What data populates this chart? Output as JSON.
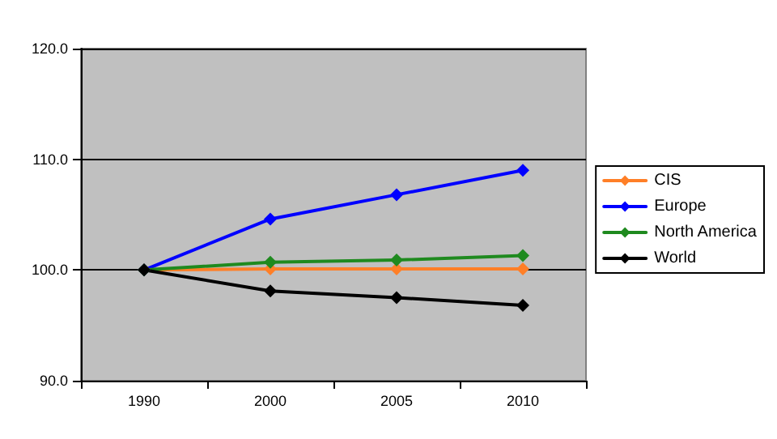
{
  "chart_data": {
    "type": "line",
    "categories": [
      "1990",
      "2000",
      "2005",
      "2010"
    ],
    "series": [
      {
        "name": "CIS",
        "color": "#ff7f27",
        "values": [
          100,
          100.1,
          100.1,
          100.1
        ]
      },
      {
        "name": "Europe",
        "color": "#0000ff",
        "values": [
          100,
          104.6,
          106.8,
          109.0
        ]
      },
      {
        "name": "North America",
        "color": "#1f8a1f",
        "values": [
          100,
          100.7,
          100.9,
          101.3
        ]
      },
      {
        "name": "World",
        "color": "#000000",
        "values": [
          100,
          98.1,
          97.5,
          96.8
        ]
      }
    ],
    "ylim": [
      90,
      120
    ],
    "yticks": [
      {
        "value": 90,
        "label": "90.0"
      },
      {
        "value": 100,
        "label": "100.0"
      },
      {
        "value": 110,
        "label": "110.0"
      },
      {
        "value": 120,
        "label": "120.0"
      }
    ],
    "grid": "y",
    "legend": "right",
    "marker": "diamond",
    "line_style": "solid"
  }
}
